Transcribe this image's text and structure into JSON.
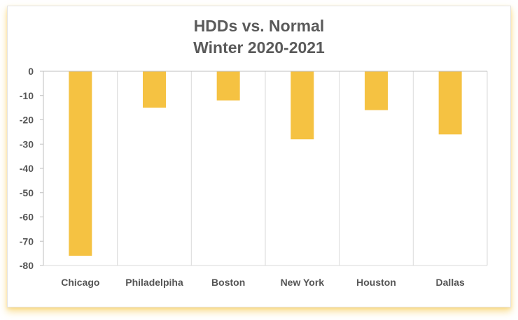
{
  "chart_data": {
    "type": "bar",
    "title": [
      "HDDs  vs. Normal",
      "Winter 2020-2021"
    ],
    "categories": [
      "Chicago",
      "Philadelpiha",
      "Boston",
      "New York",
      "Houston",
      "Dallas"
    ],
    "values": [
      -76,
      -15,
      -12,
      -28,
      -16,
      -26
    ],
    "ylim": [
      -80,
      0
    ],
    "yticks": [
      0,
      -10,
      -20,
      -30,
      -40,
      -50,
      -60,
      -70,
      -80
    ],
    "xlabel": "",
    "ylabel": "",
    "grid": "vertical",
    "legend": "none",
    "bar_color": "#F5C242"
  }
}
